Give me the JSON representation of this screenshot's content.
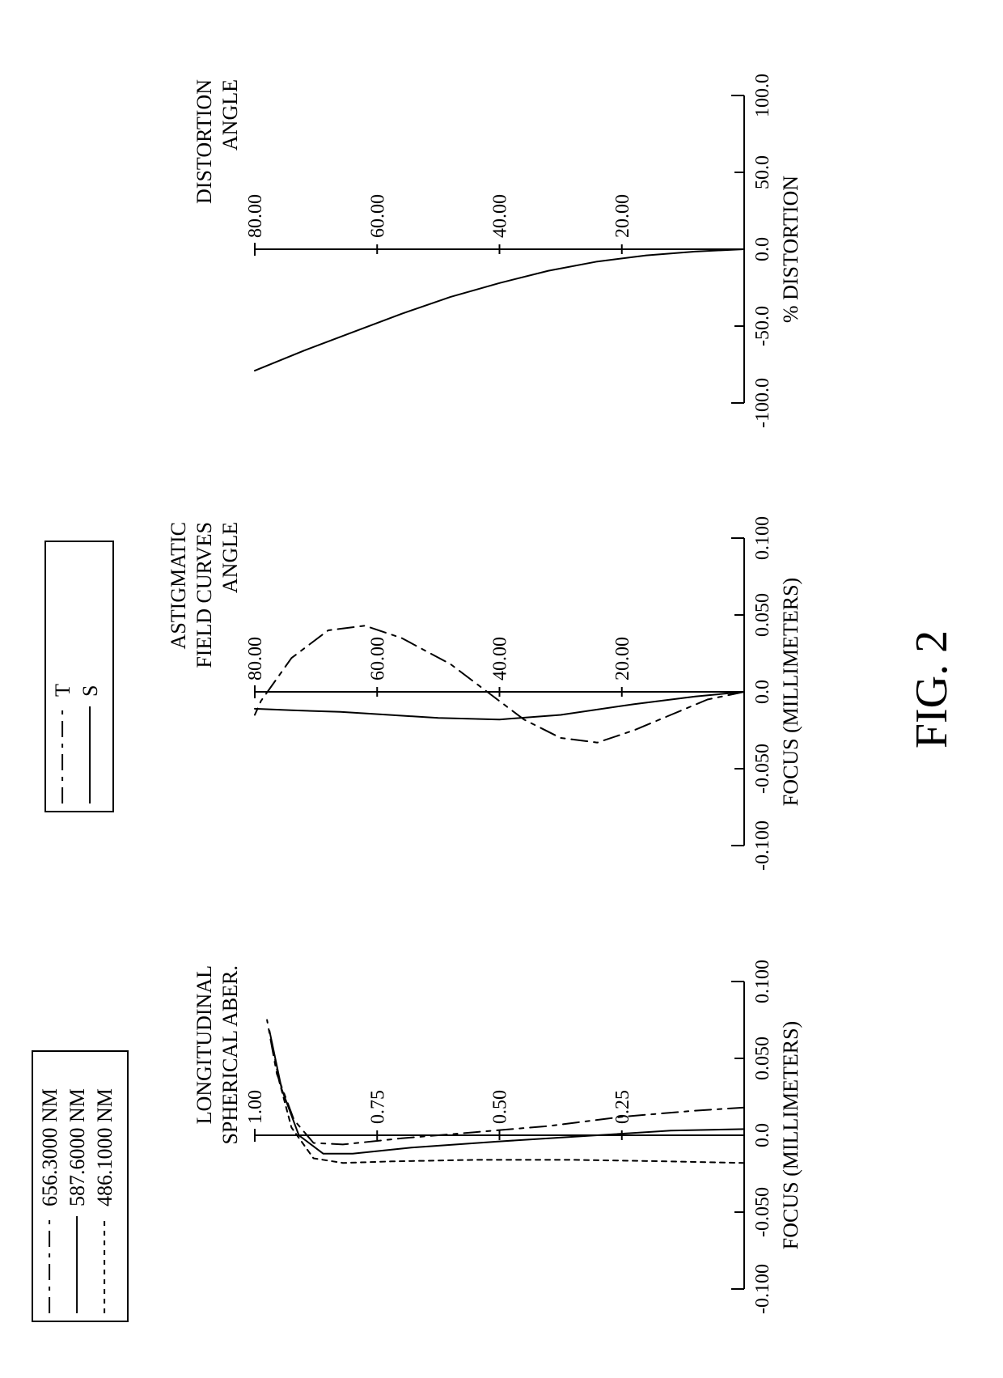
{
  "figure_label": "FIG. 2",
  "stroke_color": "#000000",
  "background_color": "#ffffff",
  "font_family": "Times New Roman",
  "legend_wavelengths": {
    "box": {
      "stroke_width": 2
    },
    "items": [
      {
        "label": "656.3000 NM",
        "dash": "20 8 5 8"
      },
      {
        "label": "587.6000 NM",
        "dash": ""
      },
      {
        "label": "486.1000 NM",
        "dash": "6 6"
      }
    ],
    "font_size": 26
  },
  "legend_ts": {
    "box": {
      "stroke_width": 2
    },
    "items": [
      {
        "label": "T",
        "dash": "20 8 5 8"
      },
      {
        "label": "S",
        "dash": ""
      }
    ],
    "font_size": 26
  },
  "chart_spherical": {
    "title_line1": "LONGITUDINAL",
    "title_line2": "SPHERICAL ABER.",
    "title_fontsize": 26,
    "x_axis": {
      "label": "FOCUS (MILLIMETERS)",
      "ticks": [
        "-0.100",
        "-0.050",
        "0.0",
        "0.050",
        "0.100"
      ],
      "lim": [
        -0.1,
        0.1
      ],
      "tick_fontsize": 24,
      "label_fontsize": 26
    },
    "y_axis": {
      "ticks": [
        "1.00",
        "0.75",
        "0.50",
        "0.25"
      ],
      "lim": [
        0,
        1
      ],
      "tick_fontsize": 24
    },
    "series": [
      {
        "name": "656.3000 NM",
        "dash": "20 8 5 8",
        "stroke_width": 2,
        "points": [
          [
            0.018,
            0.0
          ],
          [
            0.016,
            0.1
          ],
          [
            0.012,
            0.25
          ],
          [
            0.006,
            0.4
          ],
          [
            0.002,
            0.55
          ],
          [
            -0.002,
            0.7
          ],
          [
            -0.006,
            0.82
          ],
          [
            -0.005,
            0.88
          ],
          [
            0.01,
            0.92
          ],
          [
            0.04,
            0.955
          ],
          [
            0.075,
            0.975
          ]
        ]
      },
      {
        "name": "587.6000 NM",
        "dash": "",
        "stroke_width": 2,
        "points": [
          [
            0.004,
            0.0
          ],
          [
            0.003,
            0.15
          ],
          [
            0.0,
            0.3
          ],
          [
            -0.004,
            0.5
          ],
          [
            -0.008,
            0.68
          ],
          [
            -0.012,
            0.8
          ],
          [
            -0.012,
            0.86
          ],
          [
            0.0,
            0.91
          ],
          [
            0.03,
            0.945
          ],
          [
            0.068,
            0.97
          ]
        ]
      },
      {
        "name": "486.1000 NM",
        "dash": "6 6",
        "stroke_width": 2,
        "points": [
          [
            -0.018,
            0.0
          ],
          [
            -0.017,
            0.15
          ],
          [
            -0.016,
            0.35
          ],
          [
            -0.016,
            0.55
          ],
          [
            -0.017,
            0.72
          ],
          [
            -0.018,
            0.82
          ],
          [
            -0.015,
            0.88
          ],
          [
            0.005,
            0.925
          ],
          [
            0.035,
            0.95
          ],
          [
            0.06,
            0.965
          ]
        ]
      }
    ]
  },
  "chart_astigmatic": {
    "title_line1": "ASTIGMATIC",
    "title_line2": "FIELD CURVES",
    "title_line3": "ANGLE",
    "title_fontsize": 26,
    "x_axis": {
      "label": "FOCUS (MILLIMETERS)",
      "ticks": [
        "-0.100",
        "-0.050",
        "0.0",
        "0.050",
        "0.100"
      ],
      "lim": [
        -0.1,
        0.1
      ],
      "tick_fontsize": 24,
      "label_fontsize": 26
    },
    "y_axis": {
      "ticks": [
        "80.00",
        "60.00",
        "40.00",
        "20.00"
      ],
      "lim": [
        0,
        80
      ],
      "tick_fontsize": 24
    },
    "series": [
      {
        "name": "T",
        "dash": "20 8 5 8",
        "stroke_width": 2,
        "points": [
          [
            0.0,
            0.0
          ],
          [
            -0.005,
            6.0
          ],
          [
            -0.015,
            12.0
          ],
          [
            -0.025,
            18.0
          ],
          [
            -0.033,
            24.0
          ],
          [
            -0.03,
            30.0
          ],
          [
            -0.018,
            36.0
          ],
          [
            0.0,
            42.0
          ],
          [
            0.018,
            48.0
          ],
          [
            0.035,
            56.0
          ],
          [
            0.043,
            62.0
          ],
          [
            0.04,
            68.0
          ],
          [
            0.022,
            74.0
          ],
          [
            -0.006,
            79.0
          ],
          [
            -0.015,
            80.0
          ]
        ]
      },
      {
        "name": "S",
        "dash": "",
        "stroke_width": 2,
        "points": [
          [
            0.0,
            0.0
          ],
          [
            -0.003,
            8.0
          ],
          [
            -0.008,
            18.0
          ],
          [
            -0.015,
            30.0
          ],
          [
            -0.018,
            40.0
          ],
          [
            -0.017,
            50.0
          ],
          [
            -0.015,
            58.0
          ],
          [
            -0.013,
            66.0
          ],
          [
            -0.012,
            74.0
          ],
          [
            -0.011,
            80.0
          ]
        ]
      }
    ]
  },
  "chart_distortion": {
    "title_line1": "DISTORTION",
    "title_line2": "ANGLE",
    "title_fontsize": 26,
    "x_axis": {
      "label": "% DISTORTION",
      "ticks": [
        "-100.0",
        "-50.0",
        "0.0",
        "50.0",
        "100.0"
      ],
      "lim": [
        -100,
        100
      ],
      "tick_fontsize": 24,
      "label_fontsize": 26
    },
    "y_axis": {
      "ticks": [
        "80.00",
        "60.00",
        "40.00",
        "20.00"
      ],
      "lim": [
        0,
        80
      ],
      "tick_fontsize": 24
    },
    "series": [
      {
        "name": "distortion",
        "dash": "",
        "stroke_width": 2,
        "points": [
          [
            0.0,
            0.0
          ],
          [
            -1.5,
            8.0
          ],
          [
            -4.0,
            16.0
          ],
          [
            -8.0,
            24.0
          ],
          [
            -14.0,
            32.0
          ],
          [
            -22.0,
            40.0
          ],
          [
            -31.0,
            48.0
          ],
          [
            -42.0,
            56.0
          ],
          [
            -54.0,
            64.0
          ],
          [
            -66.0,
            72.0
          ],
          [
            -79.0,
            80.0
          ]
        ]
      }
    ]
  }
}
